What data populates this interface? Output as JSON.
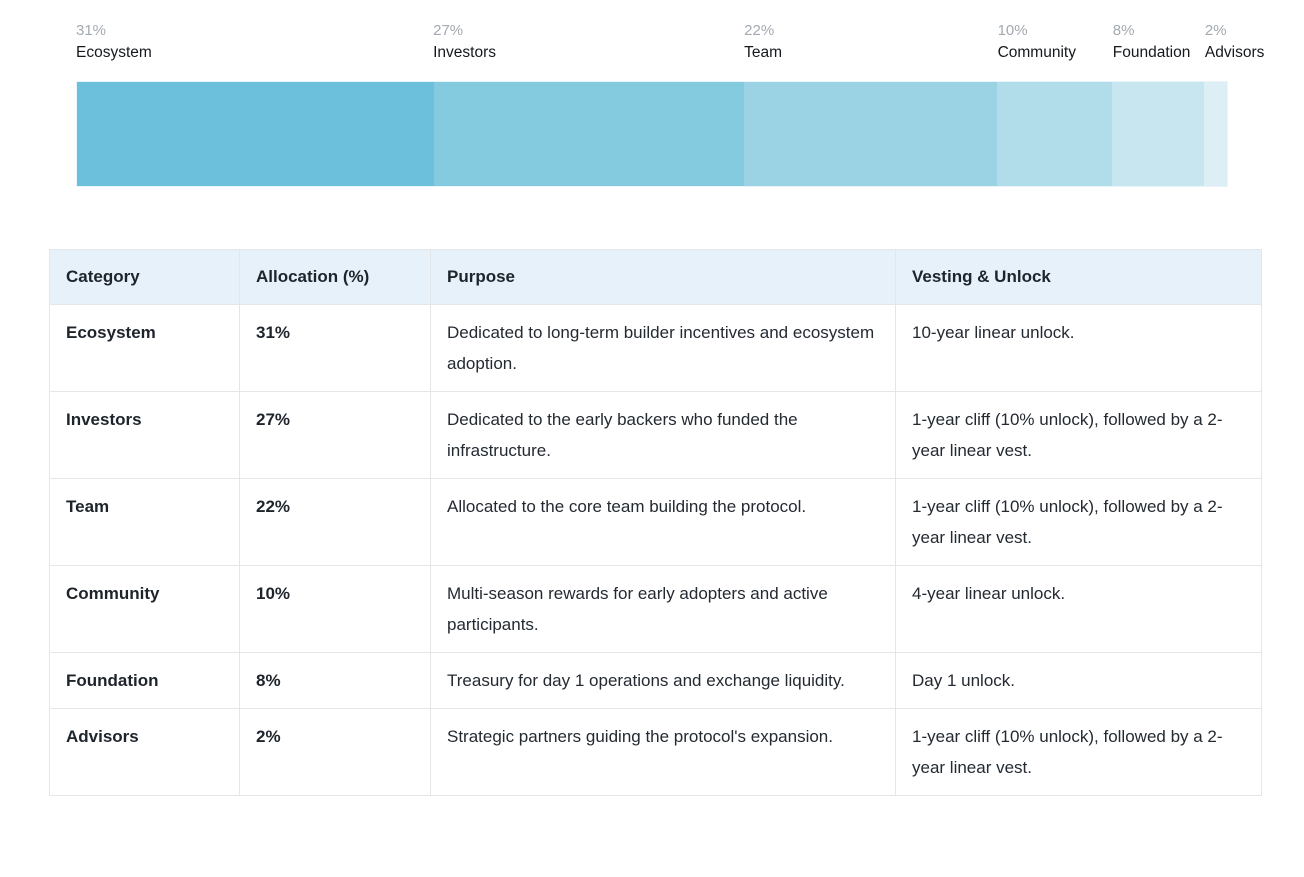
{
  "chart_data": {
    "type": "bar",
    "variant": "horizontal-stacked",
    "title": "",
    "categories": [
      "Ecosystem",
      "Investors",
      "Team",
      "Community",
      "Foundation",
      "Advisors"
    ],
    "values": [
      31,
      27,
      22,
      10,
      8,
      2
    ],
    "xlim": [
      0,
      100
    ],
    "legend_position": "top",
    "grid": false,
    "segments": [
      {
        "name": "Ecosystem",
        "percent_label": "31%",
        "value": 31,
        "color": "#6DC0DB"
      },
      {
        "name": "Investors",
        "percent_label": "27%",
        "value": 27,
        "color": "#84CBE0"
      },
      {
        "name": "Team",
        "percent_label": "22%",
        "value": 22,
        "color": "#9BD3E5"
      },
      {
        "name": "Community",
        "percent_label": "10%",
        "value": 10,
        "color": "#B1DDEA"
      },
      {
        "name": "Foundation",
        "percent_label": "8%",
        "value": 8,
        "color": "#C7E6F0"
      },
      {
        "name": "Advisors",
        "percent_label": "2%",
        "value": 2,
        "color": "#DDEEF5"
      }
    ]
  },
  "table": {
    "headers": [
      "Category",
      "Allocation (%)",
      "Purpose",
      "Vesting & Unlock"
    ],
    "rows": [
      {
        "category": "Ecosystem",
        "allocation": "31%",
        "purpose": "Dedicated to long-term builder incentives and ecosystem adoption.",
        "vesting": "10-year linear unlock."
      },
      {
        "category": "Investors",
        "allocation": "27%",
        "purpose": "Dedicated to the early backers who funded the infrastructure.",
        "vesting": "1-year cliff (10% unlock), followed by a 2-year linear vest."
      },
      {
        "category": "Team",
        "allocation": "22%",
        "purpose": "Allocated to the core team building the protocol.",
        "vesting": "1-year cliff (10% unlock), followed by a 2-year linear vest."
      },
      {
        "category": "Community",
        "allocation": "10%",
        "purpose": "Multi-season rewards for early adopters and active participants.",
        "vesting": "4-year linear unlock."
      },
      {
        "category": "Foundation",
        "allocation": "8%",
        "purpose": "Treasury for day 1 operations and exchange liquidity.",
        "vesting": "Day 1 unlock."
      },
      {
        "category": "Advisors",
        "allocation": "2%",
        "purpose": "Strategic partners guiding the protocol's expansion.",
        "vesting": "1-year cliff (10% unlock), followed by a 2-year linear vest."
      }
    ]
  },
  "colors": {
    "header_bg": "#E7F1FA",
    "table_border": "#E4E7EA",
    "percent_label_text": "#A3A9B0",
    "label_name_text": "#15181D",
    "body_text": "#242A32"
  }
}
